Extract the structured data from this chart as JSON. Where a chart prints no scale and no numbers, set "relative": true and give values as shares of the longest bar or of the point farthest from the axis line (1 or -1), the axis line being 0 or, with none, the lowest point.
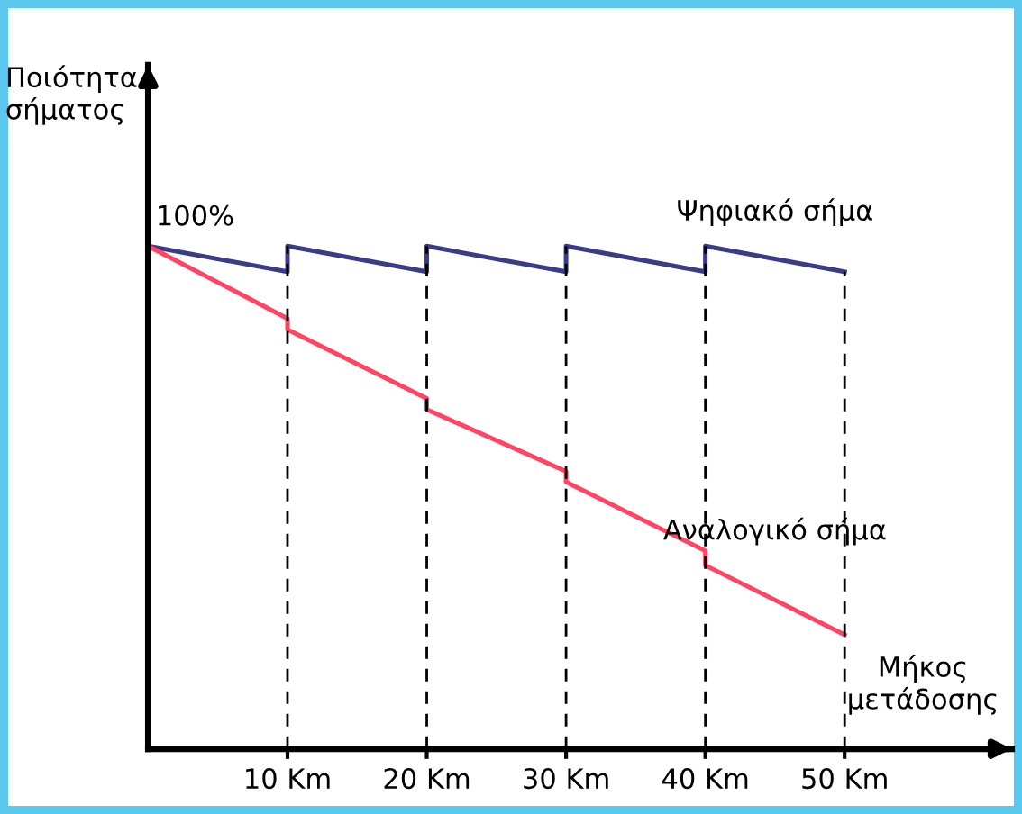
{
  "chart_data": {
    "type": "line",
    "relative": true,
    "tick_labels": "x",
    "ylabel": "Ποιότητα\nσήματος",
    "xlabel": "Μήκος\nμετάδοσης",
    "xlim": [
      0,
      62
    ],
    "xticks": [
      {
        "value": 10,
        "label": "10 Km"
      },
      {
        "value": 20,
        "label": "20 Km"
      },
      {
        "value": 30,
        "label": "30 Km"
      },
      {
        "value": 40,
        "label": "40 Km"
      },
      {
        "value": 50,
        "label": "50 Km"
      }
    ],
    "annotations": [
      {
        "text": "100%",
        "x": 0,
        "y": 1
      }
    ],
    "series": [
      {
        "name": "Ψηφιακό σήμα",
        "color": "#3b3b86",
        "x": [
          0,
          10,
          10,
          20,
          20,
          30,
          30,
          40,
          40,
          50
        ],
        "values": [
          1,
          0.949,
          1,
          0.949,
          1,
          0.949,
          1,
          0.949,
          1,
          0.949
        ]
      },
      {
        "name": "Αναλογικό σήμα",
        "color": "#ff4466",
        "x": [
          0,
          10,
          10,
          20,
          20,
          30,
          30,
          40,
          40,
          50
        ],
        "values": [
          1,
          0.856,
          0.834,
          0.697,
          0.675,
          0.552,
          0.531,
          0.394,
          0.365,
          0.227
        ]
      }
    ],
    "ref_lines": [
      {
        "axis": "x",
        "value": 10,
        "line_style": "dashed",
        "color": "#000000"
      },
      {
        "axis": "x",
        "value": 20,
        "line_style": "dashed",
        "color": "#000000"
      },
      {
        "axis": "x",
        "value": 30,
        "line_style": "dashed",
        "color": "#000000"
      },
      {
        "axis": "x",
        "value": 40,
        "line_style": "dashed",
        "color": "#000000"
      },
      {
        "axis": "x",
        "value": 50,
        "line_style": "dashed",
        "color": "#000000"
      }
    ]
  }
}
